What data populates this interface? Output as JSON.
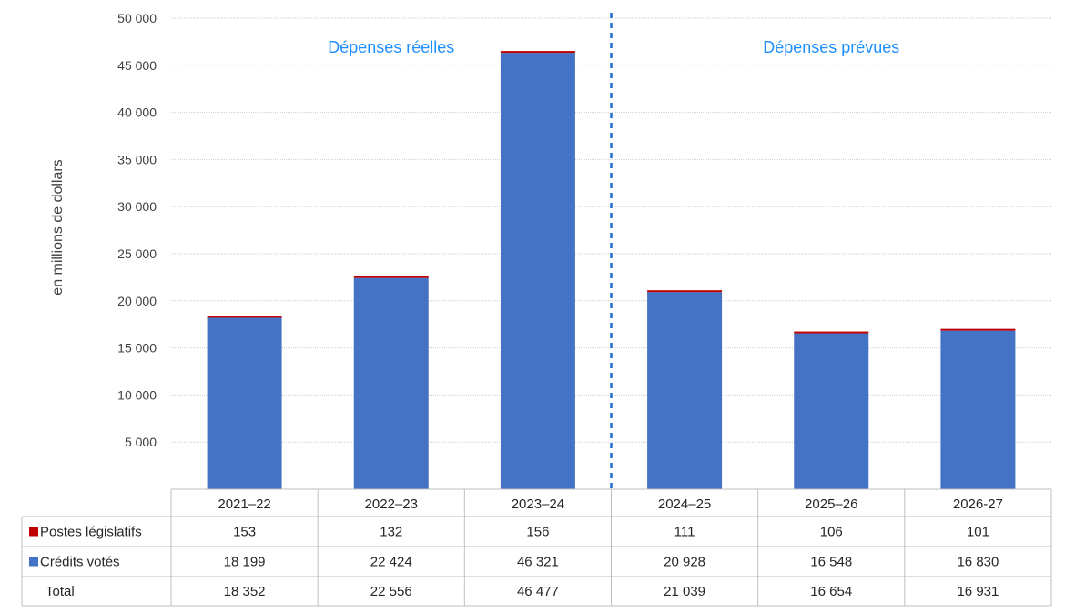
{
  "chart_data": {
    "type": "bar",
    "stacked": true,
    "categories": [
      "2021–22",
      "2022–23",
      "2023–24",
      "2024–25",
      "2025–26",
      "2026-27"
    ],
    "series": [
      {
        "name": "Crédits votés",
        "values": [
          18199,
          22424,
          46321,
          20928,
          16548,
          16830
        ],
        "color": "#4472c4"
      },
      {
        "name": "Postes législatifs",
        "values": [
          153,
          132,
          156,
          111,
          106,
          101
        ],
        "color": "#c00000"
      }
    ],
    "totals": [
      18352,
      22556,
      46477,
      21039,
      16654,
      16931
    ],
    "total_label": "Total",
    "ylabel": "en millions de dollars",
    "ylim": [
      0,
      50000
    ],
    "yticks": [
      5000,
      10000,
      15000,
      20000,
      25000,
      30000,
      35000,
      40000,
      45000,
      50000
    ],
    "ytick_labels": [
      "5 000",
      "10 000",
      "15 000",
      "20 000",
      "25 000",
      "30 000",
      "35 000",
      "40 000",
      "45 000",
      "50 000"
    ],
    "grid": true,
    "annotations": [
      "Dépenses réelles",
      "Dépenses prévues"
    ],
    "divider_after_category": 2,
    "table": {
      "rows": [
        {
          "label": "Postes législatifs",
          "marker_color": "#c00000",
          "values": [
            "153",
            "132",
            "156",
            "111",
            "106",
            "101"
          ]
        },
        {
          "label": "Crédits votés",
          "marker_color": "#4472c4",
          "values": [
            "18 199",
            "22 424",
            "46 321",
            "20 928",
            "16 548",
            "16 830"
          ]
        },
        {
          "label": "Total",
          "marker_color": "",
          "values": [
            "18 352",
            "22 556",
            "46 477",
            "21 039",
            "16 654",
            "16 931"
          ]
        }
      ]
    }
  }
}
